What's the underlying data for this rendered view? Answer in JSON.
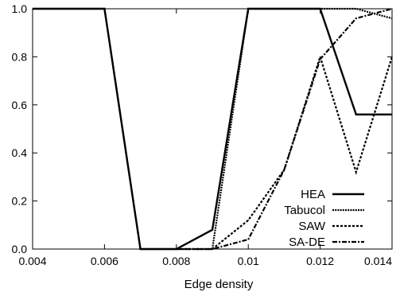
{
  "chart_data": {
    "type": "line",
    "title": "",
    "xlabel": "Edge density",
    "ylabel": "",
    "xlim": [
      0.004,
      0.014
    ],
    "ylim": [
      0.0,
      1.0
    ],
    "grid": false,
    "legend_position": "bottom-right",
    "x_ticks": [
      "0.004",
      "0.006",
      "0.008",
      "0.01",
      "0.012",
      "0.014"
    ],
    "y_ticks": [
      "0.0",
      "0.2",
      "0.4",
      "0.6",
      "0.8",
      "1.0"
    ],
    "x": [
      0.004,
      0.005,
      0.006,
      0.007,
      0.008,
      0.009,
      0.01,
      0.011,
      0.012,
      0.013,
      0.014
    ],
    "series": [
      {
        "name": "HEA",
        "line_style": "solid",
        "values": [
          1.0,
          1.0,
          1.0,
          0.0,
          0.0,
          0.08,
          1.0,
          1.0,
          1.0,
          0.56,
          0.56
        ]
      },
      {
        "name": "Tabucol",
        "line_style": "dense-dotted",
        "values": [
          1.0,
          1.0,
          1.0,
          0.0,
          0.0,
          0.0,
          1.0,
          1.0,
          1.0,
          1.0,
          0.96
        ]
      },
      {
        "name": "SAW",
        "line_style": "short-dashed",
        "values": [
          null,
          null,
          null,
          null,
          0.0,
          0.0,
          0.12,
          0.33,
          0.8,
          0.32,
          0.8
        ]
      },
      {
        "name": "SA-DE",
        "line_style": "dash-dot",
        "values": [
          null,
          null,
          null,
          null,
          0.0,
          0.0,
          0.04,
          0.33,
          0.79,
          0.96,
          1.0
        ]
      }
    ],
    "colors": {
      "line": "#000000",
      "frame": "#000000",
      "background": "#ffffff"
    }
  }
}
